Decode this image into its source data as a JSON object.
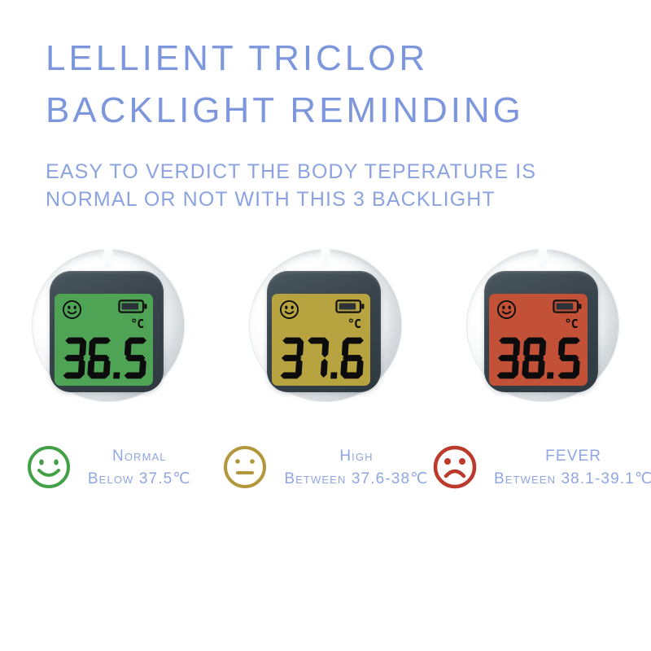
{
  "header": {
    "title_line1": "LELLIENT TRICLOR",
    "title_line2": "BACKLIGHT REMINDING",
    "subtitle_line1": "EASY TO VERDICT THE BODY TEPERATURE IS",
    "subtitle_line2": "NORMAL OR NOT WITH THIS 3 BACKLIGHT",
    "title_color": "#7d96dc",
    "subtitle_color": "#8ba3e0"
  },
  "thermometers": [
    {
      "name": "normal",
      "reading": "36.5",
      "unit": "°C",
      "lcd_color": "#4fa355",
      "mood_icon": "smiley-face",
      "battery_icon": "battery-full"
    },
    {
      "name": "high",
      "reading": "37.6",
      "unit": "°C",
      "lcd_color": "#b7a441",
      "mood_icon": "smiley-face",
      "battery_icon": "battery-full"
    },
    {
      "name": "fever",
      "reading": "38.5",
      "unit": "°C",
      "lcd_color": "#c25138",
      "mood_icon": "smiley-face",
      "battery_icon": "battery-full"
    }
  ],
  "legend": [
    {
      "mood": "happy",
      "face_color": "#43a047",
      "label": "Normal",
      "range": "Below 37.5℃"
    },
    {
      "mood": "neutral",
      "face_color": "#b2973c",
      "label": "High",
      "range": "Between 37.6-38℃"
    },
    {
      "mood": "sad",
      "face_color": "#bb3a2c",
      "label": "FEVER",
      "range": "Between 38.1-39.1℃"
    }
  ],
  "legend_text_color": "#8ea6e2"
}
